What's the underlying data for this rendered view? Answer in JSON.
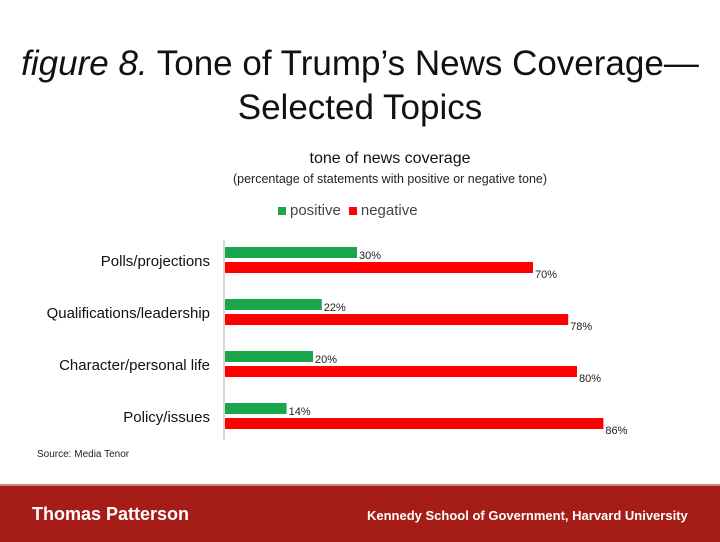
{
  "slide": {
    "title_italic": "figure 8.",
    "title_rest": " Tone of Trump’s News Coverage—Selected Topics",
    "source": "Source: Media Tenor"
  },
  "footer": {
    "left": "Thomas Patterson",
    "right": "Kennedy School of Government, Harvard University",
    "background": "#a61c17"
  },
  "chart_data": {
    "type": "bar",
    "orientation": "horizontal",
    "title": "tone of news coverage",
    "subtitle": "(percentage of statements with positive or negative tone)",
    "categories": [
      "Polls/projections",
      "Qualifications/leadership",
      "Character/personal life",
      "Policy/issues"
    ],
    "series": [
      {
        "name": "positive",
        "color": "#1aa64b",
        "values": [
          30,
          22,
          20,
          14
        ],
        "labels": [
          "30%",
          "22%",
          "20%",
          "14%"
        ]
      },
      {
        "name": "negative",
        "color": "#ff0000",
        "values": [
          70,
          78,
          80,
          86
        ],
        "labels": [
          "70%",
          "78%",
          "80%",
          "86%"
        ]
      }
    ],
    "xlim": [
      0,
      100
    ],
    "grid": false,
    "legend": "top"
  }
}
